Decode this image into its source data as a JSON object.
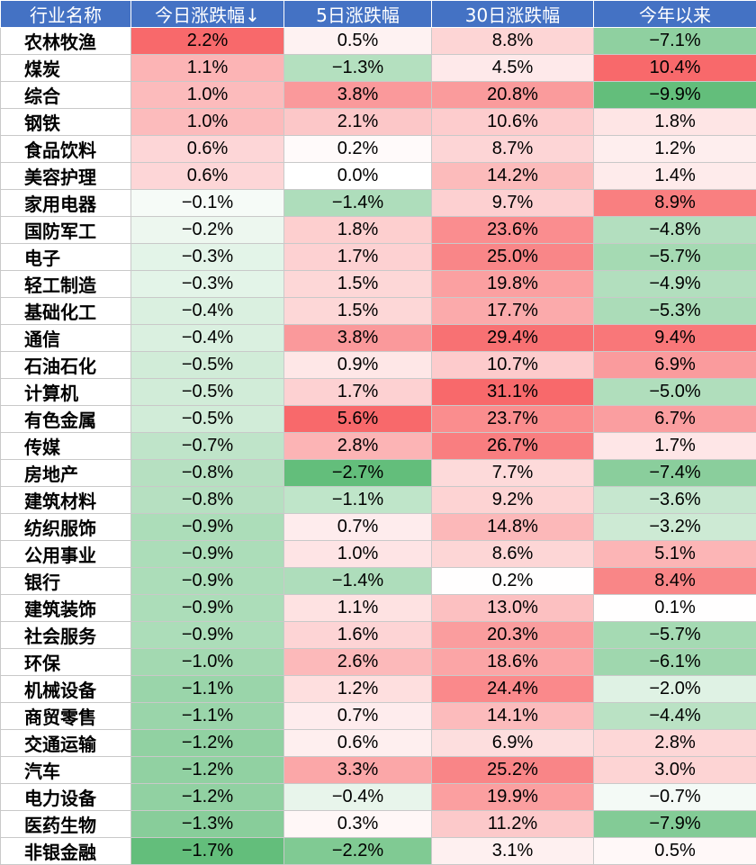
{
  "chart_data": {
    "type": "table",
    "columns": [
      "行业名称",
      "今日涨跌幅↓",
      "5日涨跌幅",
      "30日涨跌幅",
      "今年以来"
    ],
    "colors": {
      "positive_max": "#f8696b",
      "negative_max": "#63be7b",
      "neutral": "#ffffff",
      "header_bg": "#4472c4",
      "header_text": "#ffffff"
    },
    "rows": [
      {
        "name": "农林牧渔",
        "values": [
          "2.2%",
          "0.5%",
          "8.8%",
          "−7.1%"
        ]
      },
      {
        "name": "煤炭",
        "values": [
          "1.1%",
          "−1.3%",
          "4.5%",
          "10.4%"
        ]
      },
      {
        "name": "综合",
        "values": [
          "1.0%",
          "3.8%",
          "20.8%",
          "−9.9%"
        ]
      },
      {
        "name": "钢铁",
        "values": [
          "1.0%",
          "2.1%",
          "10.6%",
          "1.8%"
        ]
      },
      {
        "name": "食品饮料",
        "values": [
          "0.6%",
          "0.2%",
          "8.7%",
          "1.2%"
        ]
      },
      {
        "name": "美容护理",
        "values": [
          "0.6%",
          "0.0%",
          "14.2%",
          "1.4%"
        ]
      },
      {
        "name": "家用电器",
        "values": [
          "−0.1%",
          "−1.4%",
          "9.7%",
          "8.9%"
        ]
      },
      {
        "name": "国防军工",
        "values": [
          "−0.2%",
          "1.8%",
          "23.6%",
          "−4.8%"
        ]
      },
      {
        "name": "电子",
        "values": [
          "−0.3%",
          "1.7%",
          "25.0%",
          "−5.7%"
        ]
      },
      {
        "name": "轻工制造",
        "values": [
          "−0.3%",
          "1.5%",
          "19.8%",
          "−4.9%"
        ]
      },
      {
        "name": "基础化工",
        "values": [
          "−0.4%",
          "1.5%",
          "17.7%",
          "−5.3%"
        ]
      },
      {
        "name": "通信",
        "values": [
          "−0.4%",
          "3.8%",
          "29.4%",
          "9.4%"
        ]
      },
      {
        "name": "石油石化",
        "values": [
          "−0.5%",
          "0.9%",
          "10.7%",
          "6.9%"
        ]
      },
      {
        "name": "计算机",
        "values": [
          "−0.5%",
          "1.7%",
          "31.1%",
          "−5.0%"
        ]
      },
      {
        "name": "有色金属",
        "values": [
          "−0.5%",
          "5.6%",
          "23.7%",
          "6.7%"
        ]
      },
      {
        "name": "传媒",
        "values": [
          "−0.7%",
          "2.8%",
          "26.7%",
          "1.7%"
        ]
      },
      {
        "name": "房地产",
        "values": [
          "−0.8%",
          "−2.7%",
          "7.7%",
          "−7.4%"
        ]
      },
      {
        "name": "建筑材料",
        "values": [
          "−0.8%",
          "−1.1%",
          "9.2%",
          "−3.6%"
        ]
      },
      {
        "name": "纺织服饰",
        "values": [
          "−0.9%",
          "0.7%",
          "14.8%",
          "−3.2%"
        ]
      },
      {
        "name": "公用事业",
        "values": [
          "−0.9%",
          "1.0%",
          "8.6%",
          "5.1%"
        ]
      },
      {
        "name": "银行",
        "values": [
          "−0.9%",
          "−1.4%",
          "0.2%",
          "8.4%"
        ]
      },
      {
        "name": "建筑装饰",
        "values": [
          "−0.9%",
          "1.1%",
          "13.0%",
          "0.1%"
        ]
      },
      {
        "name": "社会服务",
        "values": [
          "−0.9%",
          "1.6%",
          "20.3%",
          "−5.7%"
        ]
      },
      {
        "name": "环保",
        "values": [
          "−1.0%",
          "2.6%",
          "18.6%",
          "−6.1%"
        ]
      },
      {
        "name": "机械设备",
        "values": [
          "−1.1%",
          "1.2%",
          "24.4%",
          "−2.0%"
        ]
      },
      {
        "name": "商贸零售",
        "values": [
          "−1.1%",
          "0.7%",
          "14.1%",
          "−4.4%"
        ]
      },
      {
        "name": "交通运输",
        "values": [
          "−1.2%",
          "0.6%",
          "6.9%",
          "2.8%"
        ]
      },
      {
        "name": "汽车",
        "values": [
          "−1.2%",
          "3.3%",
          "25.2%",
          "3.0%"
        ]
      },
      {
        "name": "电力设备",
        "values": [
          "−1.2%",
          "−0.4%",
          "19.9%",
          "−0.7%"
        ]
      },
      {
        "name": "医药生物",
        "values": [
          "−1.3%",
          "0.3%",
          "11.2%",
          "−7.9%"
        ]
      },
      {
        "name": "非银金融",
        "values": [
          "−1.7%",
          "−2.2%",
          "3.1%",
          "0.5%"
        ]
      }
    ]
  }
}
